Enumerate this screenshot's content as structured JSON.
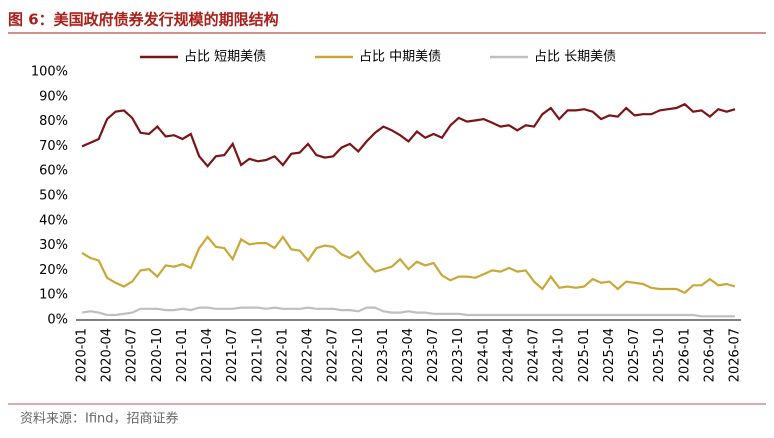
{
  "chart_data": {
    "type": "line",
    "title": "图 6：美国政府债券发行规模的期限结构",
    "source": "资料来源：Ifind，招商证券",
    "categories": [
      "2020-01",
      null,
      null,
      "2020-04",
      null,
      null,
      "2020-07",
      null,
      null,
      "2020-10",
      null,
      null,
      "2021-01",
      null,
      null,
      "2021-04",
      null,
      null,
      "2021-07",
      null,
      null,
      "2021-10",
      null,
      null,
      "2022-01",
      null,
      null,
      "2022-04",
      null,
      null,
      "2022-07",
      null,
      null,
      "2022-10",
      null,
      null,
      "2023-01",
      null,
      null,
      "2023-04",
      null,
      null,
      "2023-07",
      null,
      null,
      "2023-10",
      null,
      null,
      "2024-01",
      null,
      null,
      "2024-04",
      null,
      null,
      "2024-07",
      null,
      null,
      "2024-10",
      null,
      null,
      "2025-01",
      null,
      null,
      "2025-04",
      null,
      null,
      "2025-07",
      null,
      null,
      "2025-10",
      null,
      null,
      "2026-01",
      null,
      null,
      "2026-04",
      null,
      null,
      "2026-07"
    ],
    "series": [
      {
        "name": "占比 短期美债",
        "color": "#7b1416",
        "values": [
          70,
          71.5,
          73,
          81,
          84,
          84.5,
          81.5,
          75.5,
          75,
          78,
          74,
          74.5,
          73,
          75,
          66,
          62,
          66,
          66.5,
          71,
          62.5,
          65,
          64,
          64.5,
          66,
          62.5,
          67,
          67.5,
          71,
          66.5,
          65.5,
          66,
          69.5,
          71,
          68,
          72,
          75.5,
          78,
          76.5,
          74.5,
          72,
          76,
          73.5,
          75,
          73.5,
          78.5,
          81.5,
          80,
          80.5,
          81,
          79.5,
          78,
          78.5,
          76.5,
          78.5,
          78,
          83,
          85.5,
          81,
          84.5,
          84.5,
          85,
          84,
          81,
          82.5,
          82,
          85.5,
          82.5,
          83,
          83,
          84.5,
          85,
          85.5,
          87,
          84,
          84.5,
          82,
          85,
          84,
          85
        ]
      },
      {
        "name": "占比 中期美债",
        "color": "#c8a838",
        "values": [
          27,
          25,
          24,
          17,
          15,
          13.5,
          15.5,
          20,
          20.5,
          17.5,
          22,
          21.5,
          22.5,
          21,
          29,
          33.5,
          29.5,
          29,
          24.5,
          32.5,
          30.5,
          31,
          31,
          29,
          33.5,
          28.5,
          28,
          24,
          29,
          30,
          29.5,
          26.5,
          25,
          27.5,
          23,
          19.5,
          20.5,
          21.5,
          24.5,
          20.5,
          23.5,
          22,
          23,
          18,
          16,
          17.5,
          17.5,
          17,
          18.5,
          20,
          19.5,
          21,
          19.5,
          20,
          15.5,
          12.5,
          17.5,
          13,
          13.5,
          13,
          13.5,
          16.5,
          15,
          15.5,
          12.5,
          15.5,
          15,
          14.5,
          13,
          12.5,
          12.5,
          12.5,
          11,
          14,
          14,
          16.5,
          14,
          14.5,
          13.5
        ]
      },
      {
        "name": "占比 长期美债",
        "color": "#bfbfbf",
        "values": [
          3,
          3.5,
          3,
          2,
          2,
          2.5,
          3,
          4.5,
          4.5,
          4.5,
          4,
          4,
          4.5,
          4,
          5,
          5,
          4.5,
          4.5,
          4.5,
          5,
          5,
          5,
          4.5,
          5,
          4.5,
          4.5,
          4.5,
          5,
          4.5,
          4.5,
          4.5,
          4,
          4,
          3.5,
          5,
          5,
          3.5,
          3,
          3,
          3.5,
          3,
          3,
          2.5,
          2.5,
          2.5,
          2.5,
          2,
          2,
          2,
          2,
          2,
          2,
          2,
          2,
          2,
          2,
          2,
          2,
          2,
          2,
          2,
          2,
          2,
          2,
          2,
          2,
          2,
          2,
          2,
          2,
          2,
          2,
          2,
          2,
          1.5,
          1.5,
          1.5,
          1.5,
          1.5
        ]
      }
    ],
    "ylim": [
      0,
      100
    ],
    "yticks": [
      {
        "value": 0,
        "label": "0%"
      },
      {
        "value": 10,
        "label": "10%"
      },
      {
        "value": 20,
        "label": "20%"
      },
      {
        "value": 30,
        "label": "30%"
      },
      {
        "value": 40,
        "label": "40%"
      },
      {
        "value": 50,
        "label": "50%"
      },
      {
        "value": 60,
        "label": "60%"
      },
      {
        "value": 70,
        "label": "70%"
      },
      {
        "value": 80,
        "label": "80%"
      },
      {
        "value": 90,
        "label": "90%"
      },
      {
        "value": 100,
        "label": "100%"
      }
    ],
    "legend": "top",
    "grid": false
  }
}
